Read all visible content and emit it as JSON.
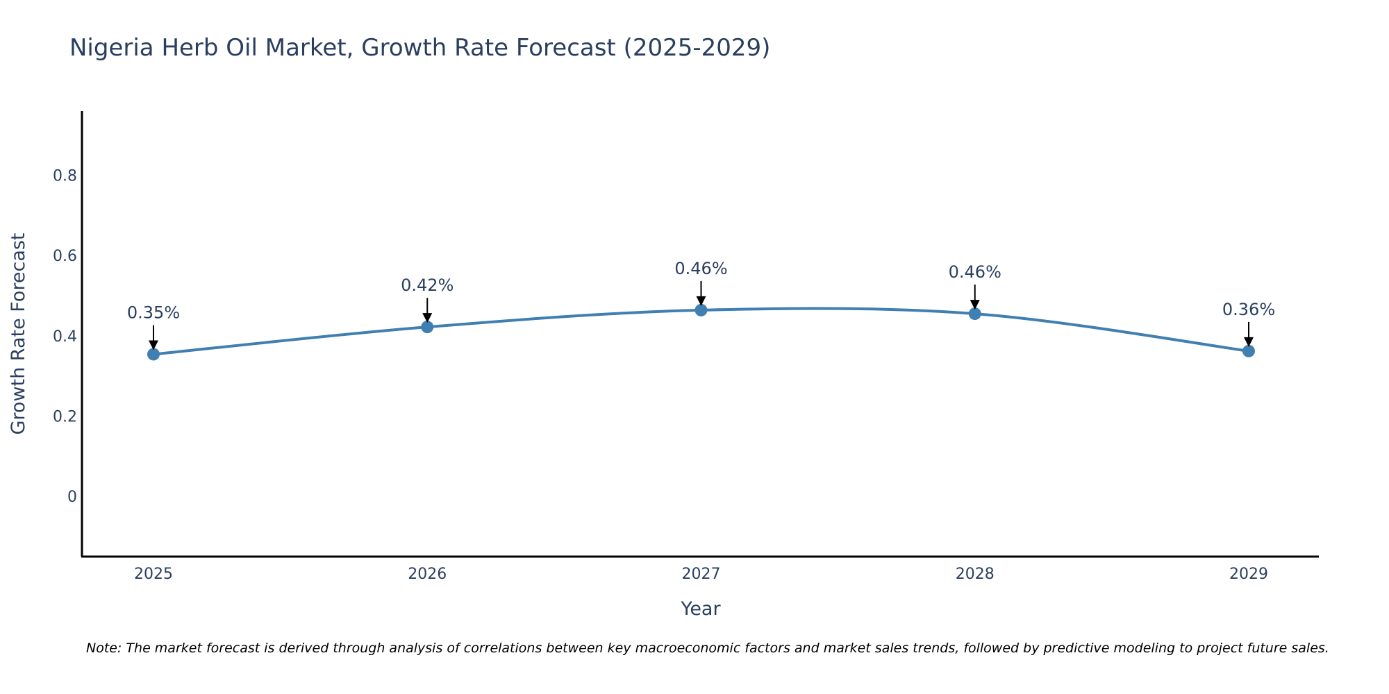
{
  "chart_data": {
    "type": "line",
    "title": "Nigeria Herb Oil Market, Growth Rate Forecast (2025-2029)",
    "xlabel": "Year",
    "ylabel": "Growth Rate Forecast",
    "categories": [
      "2025",
      "2026",
      "2027",
      "2028",
      "2029"
    ],
    "series": [
      {
        "name": "Growth Rate Forecast",
        "values": [
          0.354,
          0.422,
          0.464,
          0.455,
          0.362
        ],
        "labels": [
          "0.35%",
          "0.42%",
          "0.46%",
          "0.46%",
          "0.36%"
        ],
        "color": "#3f7fb1"
      }
    ],
    "yticks": [
      0,
      0.2,
      0.4,
      0.6,
      0.8
    ],
    "ytick_labels": [
      "0",
      "0.2",
      "0.4",
      "0.6",
      "0.8"
    ],
    "ylim": [
      -0.15,
      0.96
    ],
    "grid": false,
    "legend": "none",
    "line_shape": "spline",
    "annotation_arrow_color": "#000000"
  },
  "note": "Note: The market forecast is derived through analysis of correlations between key macroeconomic factors and market sales trends, followed by predictive modeling to project future sales."
}
